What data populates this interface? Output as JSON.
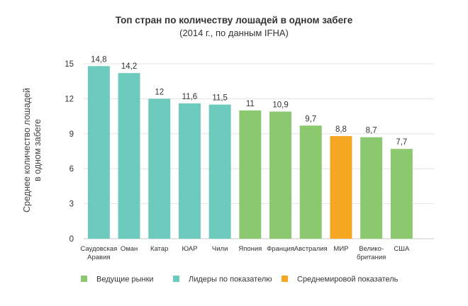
{
  "chart_data": {
    "type": "bar",
    "title": "Топ стран по количеству лошадей в одном забеге",
    "subtitle": "(2014 г., по данным IFHA)",
    "ylabel_lines": [
      "Среднее количество лошадей",
      "в одном забеге"
    ],
    "xlabel": "",
    "ylim": [
      0,
      15
    ],
    "yticks": [
      0,
      3,
      6,
      9,
      12,
      15
    ],
    "grid": true,
    "categories": [
      [
        "Саудовская",
        "Аравия"
      ],
      [
        "Оман"
      ],
      [
        "Катар"
      ],
      [
        "ЮАР"
      ],
      [
        "Чили"
      ],
      [
        "Япония"
      ],
      [
        "Франция"
      ],
      [
        "Австралия"
      ],
      [
        "МИР"
      ],
      [
        "Велико-",
        "британия"
      ],
      [
        "США"
      ]
    ],
    "values": [
      14.8,
      14.2,
      12,
      11.6,
      11.5,
      11,
      10.9,
      9.7,
      8.8,
      8.7,
      7.7
    ],
    "value_labels": [
      "14,8",
      "14,2",
      "12",
      "11,6",
      "11,5",
      "11",
      "10,9",
      "9,7",
      "8,8",
      "8,7",
      "7,7"
    ],
    "groups": [
      "leaders",
      "leaders",
      "leaders",
      "leaders",
      "leaders",
      "markets",
      "markets",
      "markets",
      "world",
      "markets",
      "markets"
    ],
    "legend": [
      {
        "key": "markets",
        "label": "Ведущие рынки",
        "color": "#8cc870"
      },
      {
        "key": "leaders",
        "label": "Лидеры по показателю",
        "color": "#6ccbbd"
      },
      {
        "key": "world",
        "label": "Среднемировой показатель",
        "color": "#f5a623"
      }
    ],
    "legend_position": "bottom"
  }
}
